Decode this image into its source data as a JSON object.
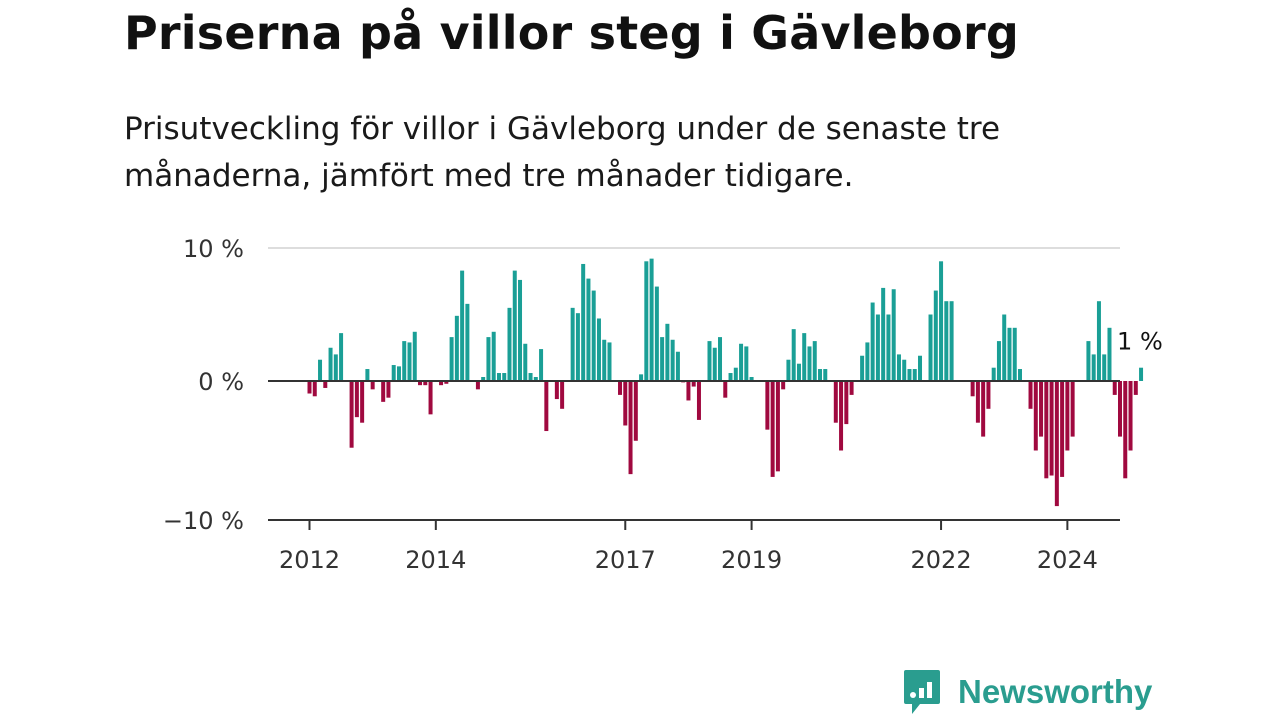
{
  "title": "Priserna på villor steg i Gävleborg",
  "subtitle": "Prisutveckling för villor i Gävleborg under de senaste tre månaderna, jämfört med tre månader tidigare.",
  "brand": {
    "name": "Newsworthy",
    "icon": "newsworthy-logo-icon",
    "color": "#2a9d8f"
  },
  "colors": {
    "positive": "#1a9f96",
    "negative": "#a0093f",
    "grid": "#dddddd",
    "zero": "#333333"
  },
  "chart_data": {
    "type": "bar",
    "ylim": [
      -10,
      10
    ],
    "y_ticks": [
      {
        "value": 10,
        "label": "10 %"
      },
      {
        "value": 0,
        "label": "0 %"
      },
      {
        "value": -10,
        "label": "−10 %"
      }
    ],
    "x_start": "2012-01",
    "x_ticks": [
      {
        "year": 2012,
        "label": "2012"
      },
      {
        "year": 2014,
        "label": "2014"
      },
      {
        "year": 2017,
        "label": "2017"
      },
      {
        "year": 2019,
        "label": "2019"
      },
      {
        "year": 2022,
        "label": "2022"
      },
      {
        "year": 2024,
        "label": "2024"
      }
    ],
    "end_label": "1 %",
    "grid": true,
    "values": [
      -0.9,
      -1.1,
      1.6,
      -0.5,
      2.5,
      2.0,
      3.6,
      0.0,
      -4.8,
      -2.6,
      -3.0,
      0.9,
      -0.6,
      0.0,
      -1.5,
      -1.2,
      1.2,
      1.1,
      3.0,
      2.9,
      3.7,
      -0.3,
      -0.3,
      -2.4,
      0.0,
      -0.3,
      -0.2,
      3.3,
      4.9,
      8.3,
      5.8,
      0.0,
      -0.6,
      0.3,
      3.3,
      3.7,
      0.6,
      0.6,
      5.5,
      8.3,
      7.6,
      2.8,
      0.6,
      0.3,
      2.4,
      -3.6,
      0.0,
      -1.3,
      -2.0,
      0.0,
      5.5,
      5.1,
      8.8,
      7.7,
      6.8,
      4.7,
      3.1,
      2.9,
      0.0,
      -1.0,
      -3.2,
      -6.7,
      -4.3,
      0.5,
      9.0,
      9.2,
      7.1,
      3.3,
      4.3,
      3.1,
      2.2,
      -0.1,
      -1.4,
      -0.4,
      -2.8,
      0.0,
      3.0,
      2.5,
      3.3,
      -1.2,
      0.6,
      1.0,
      2.8,
      2.6,
      0.3,
      0.0,
      0.0,
      -3.5,
      -6.9,
      -6.5,
      -0.6,
      1.6,
      3.9,
      1.3,
      3.6,
      2.6,
      3.0,
      0.9,
      0.9,
      0.0,
      -3.0,
      -5.0,
      -3.1,
      -1.0,
      0.0,
      1.9,
      2.9,
      5.9,
      5.0,
      7.0,
      5.0,
      6.9,
      2.0,
      1.6,
      0.9,
      0.9,
      1.9,
      0.0,
      5.0,
      6.8,
      9.0,
      6.0,
      6.0,
      0.0,
      0.0,
      0.0,
      -1.1,
      -3.0,
      -4.0,
      -2.0,
      1.0,
      3.0,
      5.0,
      4.0,
      4.0,
      0.9,
      0.0,
      -2.0,
      -5.0,
      -4.0,
      -7.0,
      -6.8,
      -9.0,
      -6.9,
      -5.0,
      -4.0,
      0.0,
      0.0,
      3.0,
      2.0,
      6.0,
      2.0,
      4.0,
      -1.0,
      -4.0,
      -7.0,
      -5.0,
      -1.0,
      1.0
    ]
  }
}
